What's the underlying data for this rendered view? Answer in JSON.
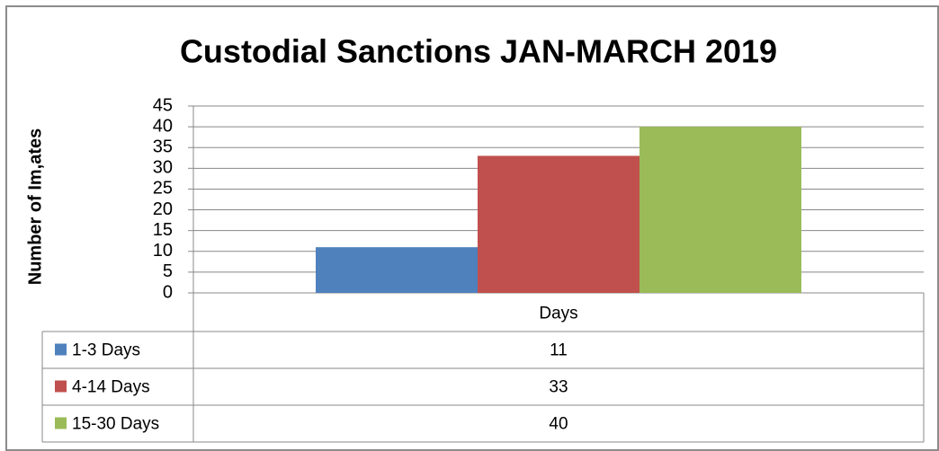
{
  "chart_data": {
    "type": "bar",
    "title": "Custodial Sanctions JAN-MARCH 2019",
    "y_label": "Number of Im,ates",
    "categories": [
      "Days"
    ],
    "series": [
      {
        "name": "1-3 Days",
        "color": "#4f81bd",
        "values": [
          11
        ]
      },
      {
        "name": "4-14 Days",
        "color": "#c0504d",
        "values": [
          33
        ]
      },
      {
        "name": "15-30 Days",
        "color": "#9bbb59",
        "values": [
          40
        ]
      }
    ],
    "ylim": [
      0,
      45
    ],
    "yticks": [
      0,
      5,
      10,
      15,
      20,
      25,
      30,
      35,
      40,
      45
    ],
    "grid": true,
    "data_table": true
  }
}
